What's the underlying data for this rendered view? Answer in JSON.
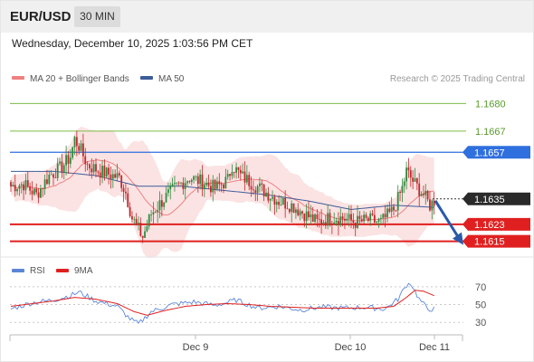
{
  "header": {
    "pair": "EUR/USD",
    "timeframe": "30 MIN",
    "timestamp": "Wednesday, December 10, 2025 1:03:56 PM CET"
  },
  "legend": {
    "ma20_label": "MA 20 + Bollinger Bands",
    "ma50_label": "MA 50",
    "credit": "Research © 2025 Trading Central"
  },
  "rsi_legend": {
    "rsi_label": "RSI",
    "ma_label": "9MA"
  },
  "chart_data": [
    {
      "type": "candlestick",
      "ylim": [
        1.1608,
        1.1687
      ],
      "x_ticks": [
        "Dec 9",
        "Dec 10",
        "Dec 11"
      ],
      "levels": [
        {
          "value": 1.168,
          "label": "1.1680",
          "style": "green-line"
        },
        {
          "value": 1.1667,
          "label": "1.1667",
          "style": "green-line"
        },
        {
          "value": 1.1657,
          "label": "1.1657",
          "style": "blue-tag"
        },
        {
          "value": 1.1635,
          "label": "1.1635",
          "style": "black-tag"
        },
        {
          "value": 1.1623,
          "label": "1.1623",
          "style": "red-tag"
        },
        {
          "value": 1.1615,
          "label": "1.1615",
          "style": "red-tag"
        }
      ],
      "pivot_arrow": {
        "from": 1.1635,
        "to": 1.1615,
        "direction": "down"
      },
      "colors": {
        "up": "#2e8b3e",
        "down": "#c0282d",
        "ma20": "#f08080",
        "ma50": "#3d5c9a",
        "band": "#fadada",
        "green_level": "#7cbc45",
        "blue_level": "#2f6fde",
        "red_level": "#e02020"
      },
      "close_path": [
        [
          0,
          1.1641
        ],
        [
          6,
          1.1642
        ],
        [
          12,
          1.1637
        ],
        [
          18,
          1.1646
        ],
        [
          24,
          1.165
        ],
        [
          28,
          1.1655
        ],
        [
          30,
          1.1663
        ],
        [
          32,
          1.166
        ],
        [
          36,
          1.1651
        ],
        [
          42,
          1.1648
        ],
        [
          48,
          1.1646
        ],
        [
          51,
          1.1645
        ],
        [
          54,
          1.1638
        ],
        [
          57,
          1.1626
        ],
        [
          62,
          1.1617
        ],
        [
          66,
          1.1628
        ],
        [
          72,
          1.1635
        ],
        [
          78,
          1.1641
        ],
        [
          84,
          1.1645
        ],
        [
          90,
          1.1643
        ],
        [
          96,
          1.164
        ],
        [
          102,
          1.1644
        ],
        [
          104,
          1.1651
        ],
        [
          108,
          1.1646
        ],
        [
          114,
          1.1642
        ],
        [
          120,
          1.1638
        ],
        [
          126,
          1.1634
        ],
        [
          132,
          1.1632
        ],
        [
          138,
          1.1628
        ],
        [
          144,
          1.1624
        ],
        [
          150,
          1.1626
        ],
        [
          156,
          1.1626
        ],
        [
          162,
          1.1624
        ],
        [
          168,
          1.1625
        ],
        [
          174,
          1.1624
        ],
        [
          180,
          1.163
        ],
        [
          184,
          1.164
        ],
        [
          186,
          1.1648
        ],
        [
          190,
          1.1642
        ],
        [
          194,
          1.1637
        ],
        [
          197,
          1.1632
        ],
        [
          199,
          1.1634
        ]
      ],
      "ma50_path": [
        [
          0,
          1.1648
        ],
        [
          20,
          1.1648
        ],
        [
          40,
          1.1646
        ],
        [
          60,
          1.1641
        ],
        [
          80,
          1.1641
        ],
        [
          100,
          1.1639
        ],
        [
          120,
          1.1637
        ],
        [
          140,
          1.1634
        ],
        [
          160,
          1.163
        ],
        [
          180,
          1.1632
        ],
        [
          199,
          1.1631
        ]
      ]
    },
    {
      "type": "line",
      "name": "RSI",
      "ylim": [
        18,
        82
      ],
      "y_ticks": [
        70,
        50,
        30
      ],
      "rsi_path": [
        [
          0,
          45
        ],
        [
          10,
          52
        ],
        [
          20,
          55
        ],
        [
          28,
          60
        ],
        [
          32,
          64
        ],
        [
          40,
          54
        ],
        [
          50,
          48
        ],
        [
          56,
          34
        ],
        [
          60,
          28
        ],
        [
          66,
          42
        ],
        [
          76,
          50
        ],
        [
          86,
          53
        ],
        [
          96,
          49
        ],
        [
          106,
          55
        ],
        [
          116,
          46
        ],
        [
          126,
          48
        ],
        [
          136,
          44
        ],
        [
          146,
          47
        ],
        [
          156,
          46
        ],
        [
          166,
          47
        ],
        [
          176,
          45
        ],
        [
          182,
          56
        ],
        [
          186,
          72
        ],
        [
          188,
          74
        ],
        [
          192,
          56
        ],
        [
          196,
          45
        ],
        [
          199,
          45
        ]
      ],
      "ma_path": [
        [
          0,
          48
        ],
        [
          10,
          51
        ],
        [
          20,
          54
        ],
        [
          30,
          58
        ],
        [
          40,
          56
        ],
        [
          50,
          51
        ],
        [
          58,
          42
        ],
        [
          64,
          38
        ],
        [
          72,
          43
        ],
        [
          82,
          48
        ],
        [
          92,
          50
        ],
        [
          102,
          51
        ],
        [
          112,
          50
        ],
        [
          122,
          48
        ],
        [
          132,
          47
        ],
        [
          142,
          46
        ],
        [
          152,
          46
        ],
        [
          162,
          46
        ],
        [
          172,
          46
        ],
        [
          180,
          48
        ],
        [
          186,
          58
        ],
        [
          190,
          66
        ],
        [
          194,
          65
        ],
        [
          199,
          60
        ]
      ]
    }
  ]
}
